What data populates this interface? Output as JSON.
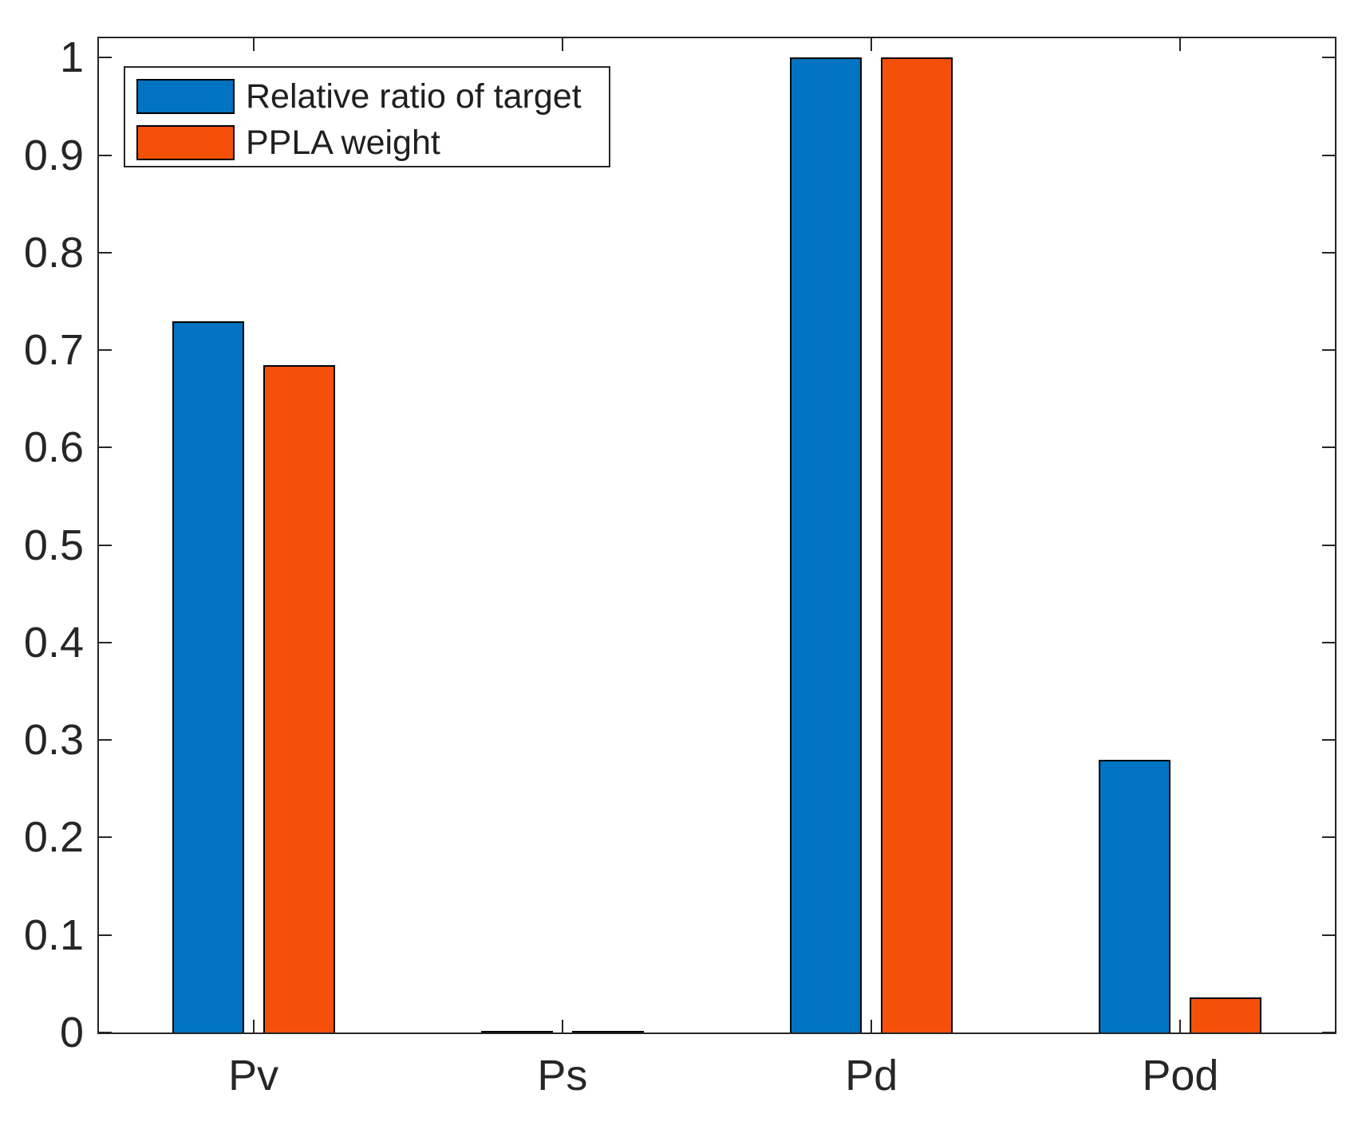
{
  "chart_data": {
    "type": "bar",
    "title": "",
    "xlabel": "",
    "ylabel": "",
    "categories": [
      "Pv",
      "Ps",
      "Pd",
      "Pod"
    ],
    "series": [
      {
        "name": "Relative ratio of target",
        "color": "#0073C1",
        "values": [
          0.73,
          0.002,
          1.0,
          0.28
        ]
      },
      {
        "name": "PPLA weight",
        "color": "#F4500A",
        "values": [
          0.685,
          0.002,
          1.0,
          0.036
        ]
      }
    ],
    "ylim": [
      0,
      1.02
    ],
    "xlim_note": "category axis, 4 groups",
    "yticks": [
      0,
      0.1,
      0.2,
      0.3,
      0.4,
      0.5,
      0.6,
      0.7,
      0.8,
      0.9,
      1
    ],
    "ytick_labels": [
      "0",
      "0.1",
      "0.2",
      "0.3",
      "0.4",
      "0.5",
      "0.6",
      "0.7",
      "0.8",
      "0.9",
      "1"
    ],
    "grid": false,
    "legend_position": "top-left",
    "bar_edge_color": "#000000",
    "axis_color": "#262626"
  }
}
